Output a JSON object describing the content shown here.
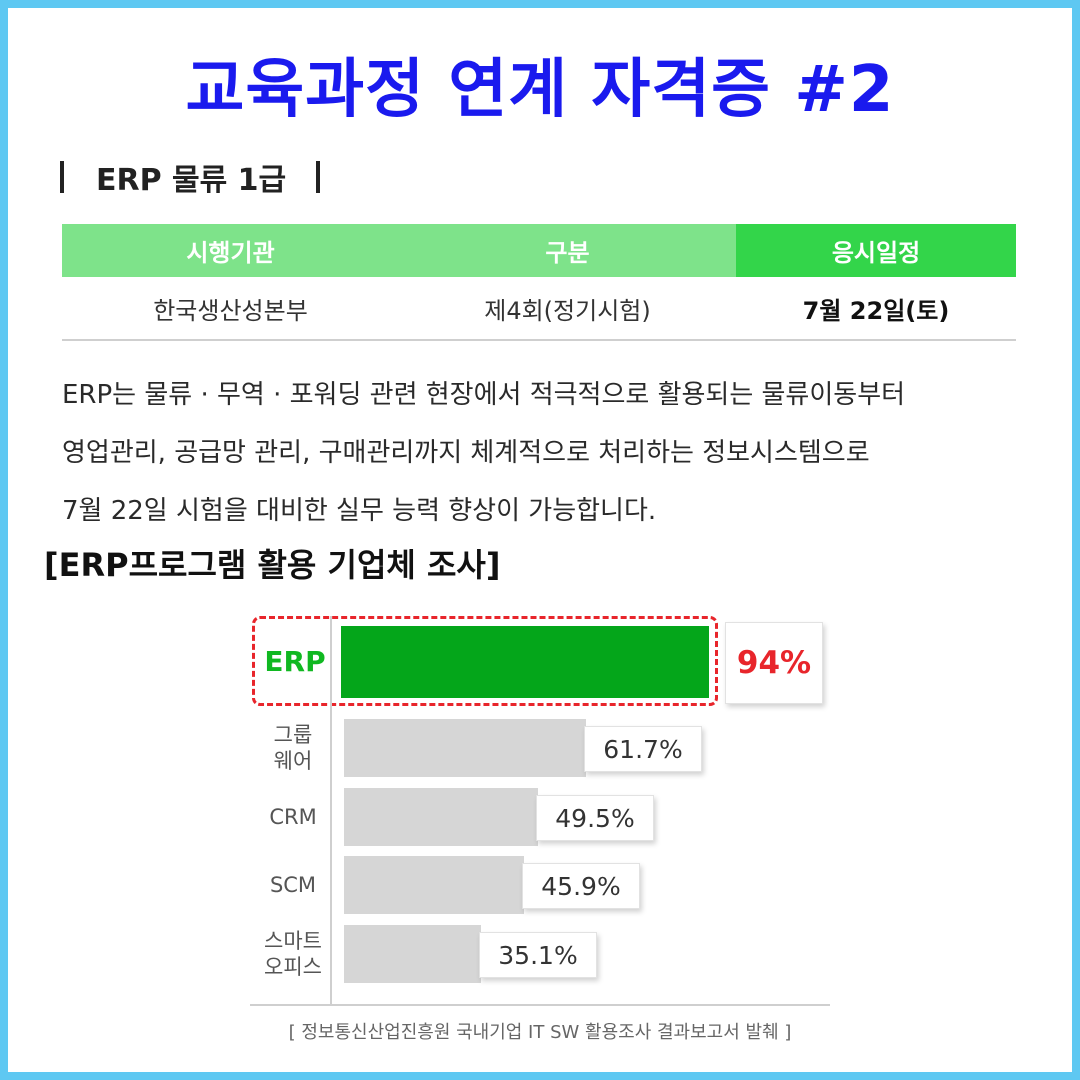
{
  "title": "교육과정 연계 자격증 #2",
  "section": {
    "name": "ERP 물류 1급"
  },
  "table": {
    "headers": [
      "시행기관",
      "구분",
      "응시일정"
    ],
    "row": [
      "한국생산성본부",
      "제4회(정기시험)",
      "7월 22일(토)"
    ]
  },
  "description": [
    "ERP는 물류 · 무역 · 포워딩 관련 현장에서 적극적으로 활용되는 물류이동부터",
    "영업관리, 공급망 관리, 구매관리까지 체계적으로 처리하는 정보시스템으로",
    "7월 22일 시험을 대비한 실무 능력 향상이 가능합니다."
  ],
  "chart_title": "[ERP프로그램 활용 기업체 조사]",
  "source": "[ 정보통신산업진흥원 국내기업 IT SW 활용조사 결과보고서 발췌 ]",
  "colors": {
    "title": "#1a1aee",
    "frame": "#5ec8f2",
    "header_green": "#7ee38a",
    "header_green_strong": "#33d54a",
    "bar_highlight": "#04a61a",
    "bar_other": "#d6d6d6",
    "highlight_red": "#e8252b"
  },
  "chart_data": {
    "type": "bar",
    "orientation": "horizontal",
    "categories": [
      "ERP",
      "그룹\n웨어",
      "CRM",
      "SCM",
      "스마트\n오피스"
    ],
    "values": [
      94,
      61.7,
      49.5,
      45.9,
      35.1
    ],
    "value_labels": [
      "94%",
      "61.7%",
      "49.5%",
      "45.9%",
      "35.1%"
    ],
    "highlight_index": 0,
    "xlim": [
      0,
      100
    ],
    "grid": false
  }
}
